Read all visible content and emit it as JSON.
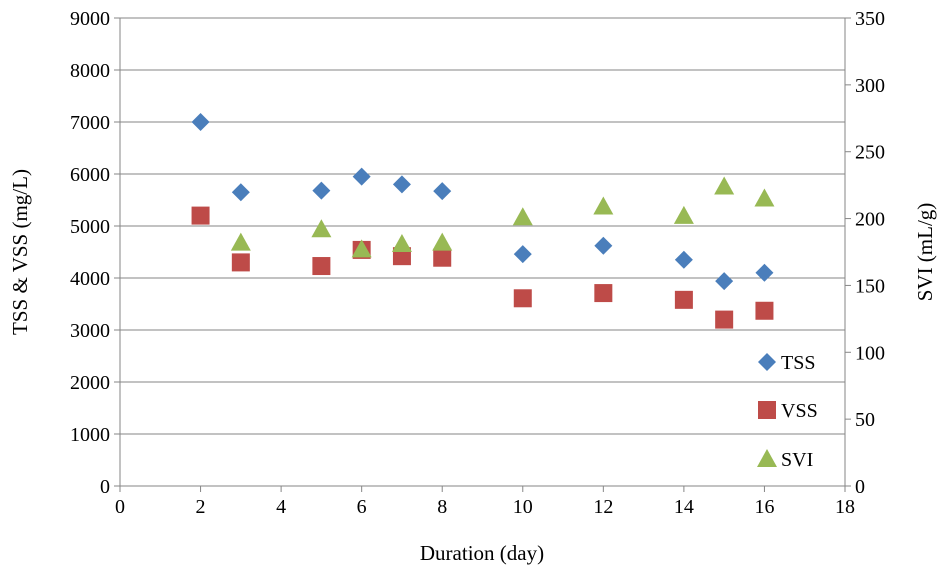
{
  "chart_data": {
    "type": "scatter",
    "title": "",
    "xlabel": "Duration (day)",
    "ylabel": "TSS & VSS (mg/L)",
    "y2label": "SVI (mL/g)",
    "xlim": [
      0,
      18
    ],
    "ylim": [
      0,
      9000
    ],
    "y2lim": [
      0,
      350
    ],
    "xticks": [
      0,
      2,
      4,
      6,
      8,
      10,
      12,
      14,
      16,
      18
    ],
    "yticks": [
      0,
      1000,
      2000,
      3000,
      4000,
      5000,
      6000,
      7000,
      8000,
      9000
    ],
    "y2ticks": [
      0,
      50,
      100,
      150,
      200,
      250,
      300,
      350
    ],
    "grid": "horizontal",
    "legend_position": "bottom-right",
    "series": [
      {
        "name": "TSS",
        "axis": "left",
        "marker": "diamond",
        "color": "#4a7ebb",
        "points": [
          [
            2,
            7000
          ],
          [
            3,
            5650
          ],
          [
            5,
            5680
          ],
          [
            6,
            5950
          ],
          [
            7,
            5800
          ],
          [
            8,
            5670
          ],
          [
            10,
            4460
          ],
          [
            12,
            4620
          ],
          [
            14,
            4350
          ],
          [
            15,
            3940
          ],
          [
            16,
            4100
          ]
        ]
      },
      {
        "name": "VSS",
        "axis": "left",
        "marker": "square",
        "color": "#be4b48",
        "points": [
          [
            2,
            5200
          ],
          [
            3,
            4300
          ],
          [
            5,
            4230
          ],
          [
            6,
            4540
          ],
          [
            7,
            4420
          ],
          [
            8,
            4390
          ],
          [
            10,
            3610
          ],
          [
            12,
            3710
          ],
          [
            14,
            3580
          ],
          [
            15,
            3200
          ],
          [
            16,
            3370
          ]
        ]
      },
      {
        "name": "SVI",
        "axis": "right",
        "marker": "triangle",
        "color": "#98b954",
        "points": [
          [
            3,
            182
          ],
          [
            5,
            192
          ],
          [
            6,
            177
          ],
          [
            7,
            181
          ],
          [
            8,
            182
          ],
          [
            10,
            201
          ],
          [
            12,
            209
          ],
          [
            14,
            202
          ],
          [
            15,
            224
          ],
          [
            16,
            215
          ]
        ]
      }
    ]
  }
}
